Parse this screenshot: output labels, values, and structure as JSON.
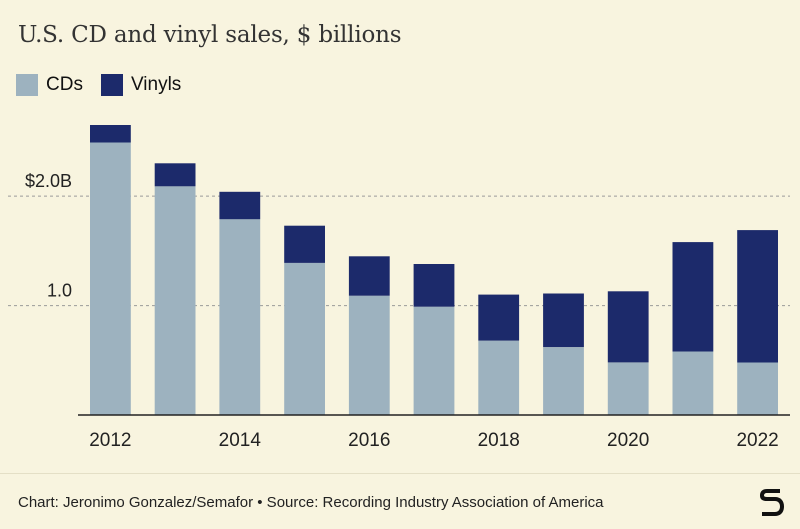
{
  "title": "U.S. CD and vinyl sales, $ billions",
  "source": "Chart: Jeronimo Gonzalez/Semafor • Source: Recording Industry Association of America",
  "colors": {
    "cds": "#9db2bf",
    "vinyls": "#1c2a6b",
    "background": "#f8f4df",
    "grid": "#9a9a9a"
  },
  "legend": [
    {
      "label": "CDs",
      "color": "#9db2bf"
    },
    {
      "label": "Vinyls",
      "color": "#1c2a6b"
    }
  ],
  "chart_data": {
    "type": "bar",
    "stacked": true,
    "title": "U.S. CD and vinyl sales, $ billions",
    "categories": [
      "2012",
      "2013",
      "2014",
      "2015",
      "2016",
      "2017",
      "2018",
      "2019",
      "2020",
      "2021",
      "2022"
    ],
    "series": [
      {
        "name": "CDs",
        "values": [
          2.49,
          2.09,
          1.79,
          1.39,
          1.09,
          0.99,
          0.68,
          0.62,
          0.48,
          0.58,
          0.48
        ]
      },
      {
        "name": "Vinyls",
        "values": [
          0.16,
          0.21,
          0.25,
          0.34,
          0.36,
          0.39,
          0.42,
          0.49,
          0.65,
          1.0,
          1.21
        ]
      }
    ],
    "ylim": [
      0,
      2.65
    ],
    "y_ticks": [
      {
        "value": 1.0,
        "label": "1.0"
      },
      {
        "value": 2.0,
        "label": "$2.0B"
      }
    ],
    "x_tick_labels": [
      "2012",
      "2014",
      "2016",
      "2018",
      "2020",
      "2022"
    ],
    "grid": true,
    "legend_position": "top-left"
  }
}
